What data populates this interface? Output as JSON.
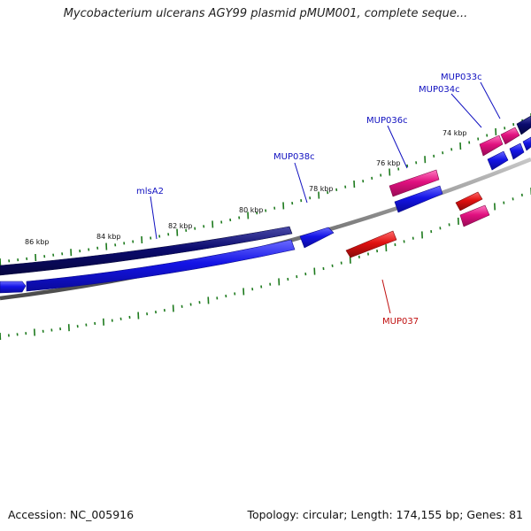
{
  "title": "Mycobacterium ulcerans AGY99 plasmid pMUM001, complete seque...",
  "accession": "Accession: NC_005916",
  "summary": "Topology: circular; Length: 174,155 bp; Genes: 81",
  "colors": {
    "backbone": "#7a7a7a",
    "tick": "#1d7a1d",
    "forward_long": "#0a0a6e",
    "forward_cds": "#1414e6",
    "reverse_cds": "#e0107f",
    "reverse_red": "#e01010",
    "label_blue": "#1010c0",
    "label_red": "#c01010"
  },
  "scale_labels": [
    "86 kbp",
    "84 kbp",
    "82 kbp",
    "80 kbp",
    "78 kbp",
    "76 kbp",
    "74 kbp"
  ],
  "gene_labels": [
    {
      "text": "mlsA2",
      "color": "blue"
    },
    {
      "text": "MUP038c",
      "color": "blue"
    },
    {
      "text": "MUP036c",
      "color": "blue"
    },
    {
      "text": "MUP034c",
      "color": "blue"
    },
    {
      "text": "MUP033c",
      "color": "blue"
    },
    {
      "text": "MUP037",
      "color": "red"
    }
  ]
}
